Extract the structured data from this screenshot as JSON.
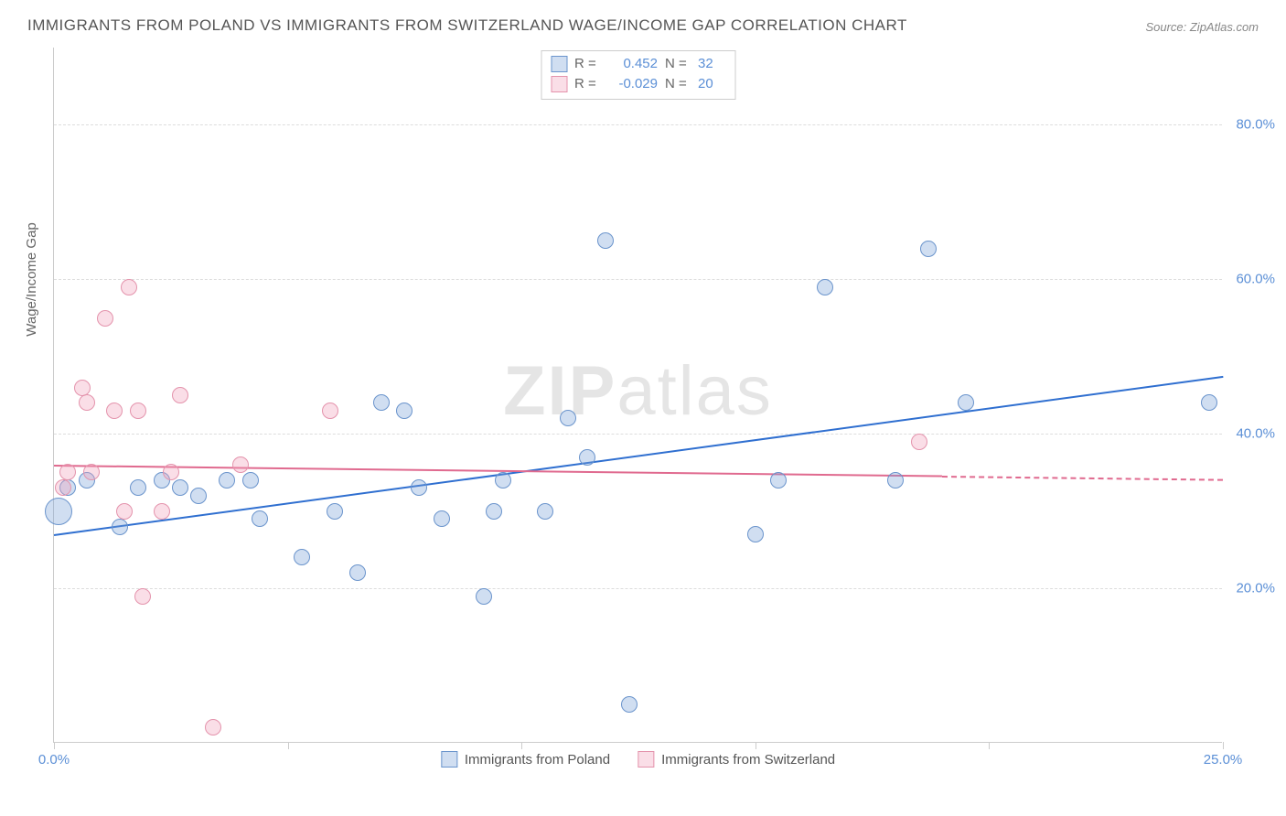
{
  "title": "IMMIGRANTS FROM POLAND VS IMMIGRANTS FROM SWITZERLAND WAGE/INCOME GAP CORRELATION CHART",
  "source": "Source: ZipAtlas.com",
  "y_axis_label": "Wage/Income Gap",
  "watermark_bold": "ZIP",
  "watermark_rest": "atlas",
  "chart": {
    "type": "scatter-correlation",
    "xlim": [
      0,
      25
    ],
    "ylim": [
      0,
      90
    ],
    "x_ticks": [
      0,
      5,
      10,
      15,
      20,
      25
    ],
    "x_tick_labels": [
      "0.0%",
      "",
      "",
      "",
      "",
      "25.0%"
    ],
    "y_gridlines": [
      20,
      40,
      60,
      80
    ],
    "y_tick_labels": [
      "20.0%",
      "40.0%",
      "60.0%",
      "80.0%"
    ],
    "background_color": "#ffffff",
    "grid_color": "#dddddd",
    "axis_color": "#cccccc",
    "tick_label_color": "#5b8fd6",
    "marker_radius": 9,
    "marker_stroke_width": 1.5,
    "series": [
      {
        "name": "Immigrants from Poland",
        "fill": "rgba(120,160,215,0.35)",
        "stroke": "#6a94cc",
        "line_color": "#2f6fd0",
        "R": "0.452",
        "N": "32",
        "trend": {
          "x1": 0,
          "y1": 27,
          "x2": 25,
          "y2": 47.5,
          "dash_from_x": null
        },
        "points": [
          {
            "x": 0.1,
            "y": 30,
            "r": 15
          },
          {
            "x": 0.3,
            "y": 33
          },
          {
            "x": 0.7,
            "y": 34
          },
          {
            "x": 1.4,
            "y": 28
          },
          {
            "x": 1.8,
            "y": 33
          },
          {
            "x": 2.3,
            "y": 34
          },
          {
            "x": 2.7,
            "y": 33
          },
          {
            "x": 3.1,
            "y": 32
          },
          {
            "x": 3.7,
            "y": 34
          },
          {
            "x": 4.2,
            "y": 34
          },
          {
            "x": 4.4,
            "y": 29
          },
          {
            "x": 5.3,
            "y": 24
          },
          {
            "x": 6.0,
            "y": 30
          },
          {
            "x": 6.5,
            "y": 22
          },
          {
            "x": 7.0,
            "y": 44
          },
          {
            "x": 7.5,
            "y": 43
          },
          {
            "x": 7.8,
            "y": 33
          },
          {
            "x": 8.3,
            "y": 29
          },
          {
            "x": 9.2,
            "y": 19
          },
          {
            "x": 9.4,
            "y": 30
          },
          {
            "x": 9.6,
            "y": 34
          },
          {
            "x": 10.5,
            "y": 30
          },
          {
            "x": 11.0,
            "y": 42
          },
          {
            "x": 11.4,
            "y": 37
          },
          {
            "x": 11.8,
            "y": 65
          },
          {
            "x": 12.3,
            "y": 5
          },
          {
            "x": 15.0,
            "y": 27
          },
          {
            "x": 15.5,
            "y": 34
          },
          {
            "x": 16.5,
            "y": 59
          },
          {
            "x": 18.0,
            "y": 34
          },
          {
            "x": 18.7,
            "y": 64
          },
          {
            "x": 19.5,
            "y": 44
          },
          {
            "x": 24.7,
            "y": 44
          }
        ]
      },
      {
        "name": "Immigrants from Switzerland",
        "fill": "rgba(240,160,185,0.35)",
        "stroke": "#e493ac",
        "line_color": "#e06a8f",
        "R": "-0.029",
        "N": "20",
        "trend": {
          "x1": 0,
          "y1": 36,
          "x2": 25,
          "y2": 34.2,
          "dash_from_x": 19
        },
        "points": [
          {
            "x": 0.2,
            "y": 33
          },
          {
            "x": 0.3,
            "y": 35
          },
          {
            "x": 0.6,
            "y": 46
          },
          {
            "x": 0.7,
            "y": 44
          },
          {
            "x": 0.8,
            "y": 35
          },
          {
            "x": 1.1,
            "y": 55
          },
          {
            "x": 1.3,
            "y": 43
          },
          {
            "x": 1.5,
            "y": 30
          },
          {
            "x": 1.6,
            "y": 59
          },
          {
            "x": 1.8,
            "y": 43
          },
          {
            "x": 1.9,
            "y": 19
          },
          {
            "x": 2.3,
            "y": 30
          },
          {
            "x": 2.5,
            "y": 35
          },
          {
            "x": 2.7,
            "y": 45
          },
          {
            "x": 3.4,
            "y": 2
          },
          {
            "x": 4.0,
            "y": 36
          },
          {
            "x": 5.9,
            "y": 43
          },
          {
            "x": 18.5,
            "y": 39
          }
        ]
      }
    ]
  },
  "stats_box": {
    "rows": [
      {
        "swatch_fill": "rgba(120,160,215,0.35)",
        "swatch_stroke": "#6a94cc",
        "R_label": "R =",
        "R_val": "0.452",
        "N_label": "N =",
        "N_val": "32"
      },
      {
        "swatch_fill": "rgba(240,160,185,0.35)",
        "swatch_stroke": "#e493ac",
        "R_label": "R =",
        "R_val": "-0.029",
        "N_label": "N =",
        "N_val": "20"
      }
    ]
  },
  "bottom_legend": [
    {
      "swatch_fill": "rgba(120,160,215,0.35)",
      "swatch_stroke": "#6a94cc",
      "label": "Immigrants from Poland"
    },
    {
      "swatch_fill": "rgba(240,160,185,0.35)",
      "swatch_stroke": "#e493ac",
      "label": "Immigrants from Switzerland"
    }
  ]
}
